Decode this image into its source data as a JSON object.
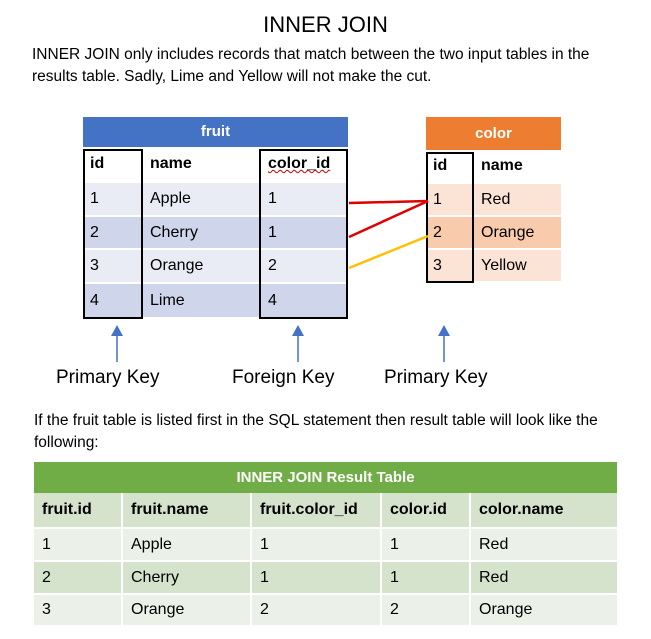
{
  "title": "INNER JOIN",
  "intro": "INNER JOIN only includes records that match between the two input tables in the results table.  Sadly, Lime and Yellow will not make the cut.",
  "fruit_table": {
    "header": "fruit",
    "columns": [
      "id",
      "name",
      "color_id"
    ],
    "rows": [
      [
        "1",
        "Apple",
        "1"
      ],
      [
        "2",
        "Cherry",
        "1"
      ],
      [
        "3",
        "Orange",
        "2"
      ],
      [
        "4",
        "Lime",
        "4"
      ]
    ]
  },
  "color_table": {
    "header": "color",
    "columns": [
      "id",
      "name"
    ],
    "rows": [
      [
        "1",
        "Red"
      ],
      [
        "2",
        "Orange"
      ],
      [
        "3",
        "Yellow"
      ]
    ]
  },
  "labels": {
    "primary_key_fruit": "Primary Key",
    "foreign_key": "Foreign Key",
    "primary_key_color": "Primary Key"
  },
  "result_intro": "If the fruit table is listed first in the SQL statement then result table will look like the following:",
  "result_table": {
    "header": "INNER JOIN Result Table",
    "columns": [
      "fruit.id",
      "fruit.name",
      "fruit.color_id",
      "color.id",
      "color.name"
    ],
    "rows": [
      [
        "1",
        "Apple",
        "1",
        "1",
        "Red"
      ],
      [
        "2",
        "Cherry",
        "1",
        "1",
        "Red"
      ],
      [
        "3",
        "Orange",
        "2",
        "2",
        "Orange"
      ]
    ]
  },
  "colors": {
    "fruit_header": "#4472c4",
    "color_header": "#ed7d31",
    "result_header": "#70ad47",
    "red_link": "#e00000",
    "yellow_link": "#ffc000",
    "arrow": "#4472c4"
  }
}
